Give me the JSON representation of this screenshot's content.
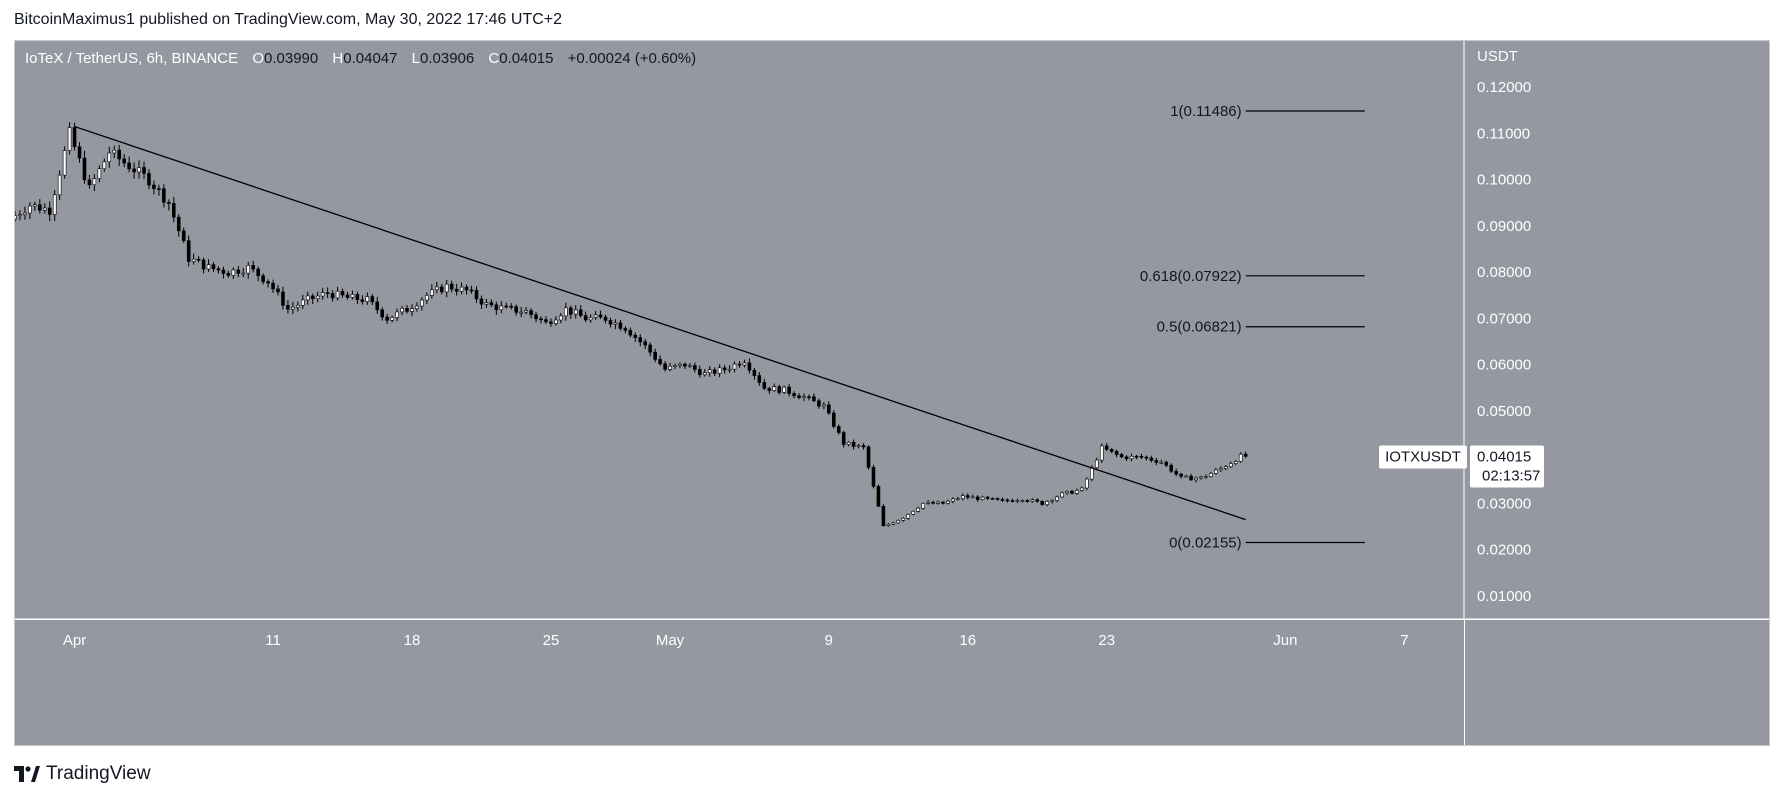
{
  "header": {
    "text": "BitcoinMaximus1 published on TradingView.com, May 30, 2022 17:46 UTC+2"
  },
  "footer": {
    "brand": "TradingView"
  },
  "colors": {
    "plot_bg": "#9598a1",
    "axis_bg": "#9598a1",
    "candle": "#000000",
    "candle_up_fill": "#ffffff",
    "trendline": "#000000",
    "fib_line": "#000000",
    "label_bg": "#ffffff"
  },
  "chart_data": {
    "type": "candlestick",
    "symbol_line": {
      "name": "IoTeX / TetherUS, 6h, BINANCE",
      "o_label": "O",
      "o_value": "0.03990",
      "h_label": "H",
      "h_value": "0.04047",
      "l_label": "L",
      "l_value": "0.03906",
      "c_label": "C",
      "c_value": "0.04015",
      "change": "+0.00024 (+0.60%)"
    },
    "currency_label": "USDT",
    "y_axis": {
      "min": 0.005,
      "max": 0.13,
      "ticks": [
        "0.12000",
        "0.11000",
        "0.10000",
        "0.09000",
        "0.08000",
        "0.07000",
        "0.06000",
        "0.05000",
        "0.04000",
        "0.03000",
        "0.02000",
        "0.01000"
      ],
      "tick_values": [
        0.12,
        0.11,
        0.1,
        0.09,
        0.08,
        0.07,
        0.06,
        0.05,
        0.04,
        0.03,
        0.02,
        0.01
      ]
    },
    "x_axis": {
      "start": "2022-03-29",
      "end": "2022-06-10",
      "ticks": [
        {
          "label": "Apr",
          "date": "2022-04-01"
        },
        {
          "label": "11",
          "date": "2022-04-11"
        },
        {
          "label": "18",
          "date": "2022-04-18"
        },
        {
          "label": "25",
          "date": "2022-04-25"
        },
        {
          "label": "May",
          "date": "2022-05-01"
        },
        {
          "label": "9",
          "date": "2022-05-09"
        },
        {
          "label": "16",
          "date": "2022-05-16"
        },
        {
          "label": "23",
          "date": "2022-05-23"
        },
        {
          "label": "Jun",
          "date": "2022-06-01"
        },
        {
          "label": "7",
          "date": "2022-06-07"
        }
      ]
    },
    "price_path": [
      [
        "2022-03-29",
        0.0915
      ],
      [
        "2022-03-30",
        0.0945
      ],
      [
        "2022-03-31",
        0.0935
      ],
      [
        "2022-04-01",
        0.11
      ],
      [
        "2022-04-02",
        0.098
      ],
      [
        "2022-04-03",
        0.106
      ],
      [
        "2022-04-04",
        0.103
      ],
      [
        "2022-04-05",
        0.1
      ],
      [
        "2022-04-06",
        0.095
      ],
      [
        "2022-04-07",
        0.083
      ],
      [
        "2022-04-08",
        0.081
      ],
      [
        "2022-04-09",
        0.08
      ],
      [
        "2022-04-10",
        0.081
      ],
      [
        "2022-04-11",
        0.078
      ],
      [
        "2022-04-12",
        0.072
      ],
      [
        "2022-04-13",
        0.074
      ],
      [
        "2022-04-14",
        0.0755
      ],
      [
        "2022-04-15",
        0.0745
      ],
      [
        "2022-04-16",
        0.074
      ],
      [
        "2022-04-17",
        0.07
      ],
      [
        "2022-04-18",
        0.072
      ],
      [
        "2022-04-19",
        0.075
      ],
      [
        "2022-04-20",
        0.077
      ],
      [
        "2022-04-21",
        0.076
      ],
      [
        "2022-04-22",
        0.073
      ],
      [
        "2022-04-23",
        0.072
      ],
      [
        "2022-04-24",
        0.0715
      ],
      [
        "2022-04-25",
        0.069
      ],
      [
        "2022-04-26",
        0.072
      ],
      [
        "2022-04-27",
        0.07
      ],
      [
        "2022-04-28",
        0.07
      ],
      [
        "2022-04-29",
        0.068
      ],
      [
        "2022-04-30",
        0.064
      ],
      [
        "2022-05-01",
        0.059
      ],
      [
        "2022-05-02",
        0.06
      ],
      [
        "2022-05-03",
        0.058
      ],
      [
        "2022-05-04",
        0.059
      ],
      [
        "2022-05-05",
        0.061
      ],
      [
        "2022-05-06",
        0.055
      ],
      [
        "2022-05-07",
        0.0545
      ],
      [
        "2022-05-08",
        0.053
      ],
      [
        "2022-05-09",
        0.051
      ],
      [
        "2022-05-10",
        0.043
      ],
      [
        "2022-05-11",
        0.042
      ],
      [
        "2022-05-12",
        0.025
      ],
      [
        "2022-05-13",
        0.027
      ],
      [
        "2022-05-14",
        0.03
      ],
      [
        "2022-05-15",
        0.03
      ],
      [
        "2022-05-16",
        0.0315
      ],
      [
        "2022-05-17",
        0.031
      ],
      [
        "2022-05-18",
        0.0305
      ],
      [
        "2022-05-19",
        0.031
      ],
      [
        "2022-05-20",
        0.03
      ],
      [
        "2022-05-21",
        0.032
      ],
      [
        "2022-05-22",
        0.033
      ],
      [
        "2022-05-23",
        0.042
      ],
      [
        "2022-05-24",
        0.04
      ],
      [
        "2022-05-25",
        0.04
      ],
      [
        "2022-05-26",
        0.039
      ],
      [
        "2022-05-27",
        0.0355
      ],
      [
        "2022-05-28",
        0.0355
      ],
      [
        "2022-05-29",
        0.0375
      ],
      [
        "2022-05-30",
        0.0402
      ]
    ],
    "trendline": {
      "from": {
        "date": "2022-04-01",
        "value": 0.1115
      },
      "to": {
        "date": "2022-05-30",
        "value": 0.0265
      }
    },
    "fib_levels": [
      {
        "label": "1(0.11486)",
        "value": 0.11486
      },
      {
        "label": "0.618(0.07922)",
        "value": 0.07922
      },
      {
        "label": "0.5(0.06821)",
        "value": 0.06821
      },
      {
        "label": "0(0.02155)",
        "value": 0.02155
      }
    ],
    "fib_line_range": {
      "from": "2022-05-30",
      "to": "2022-06-05"
    },
    "last_price": {
      "symbol": "IOTXUSDT",
      "price": "0.04015",
      "countdown": "02:13:57",
      "value": 0.04015
    }
  }
}
